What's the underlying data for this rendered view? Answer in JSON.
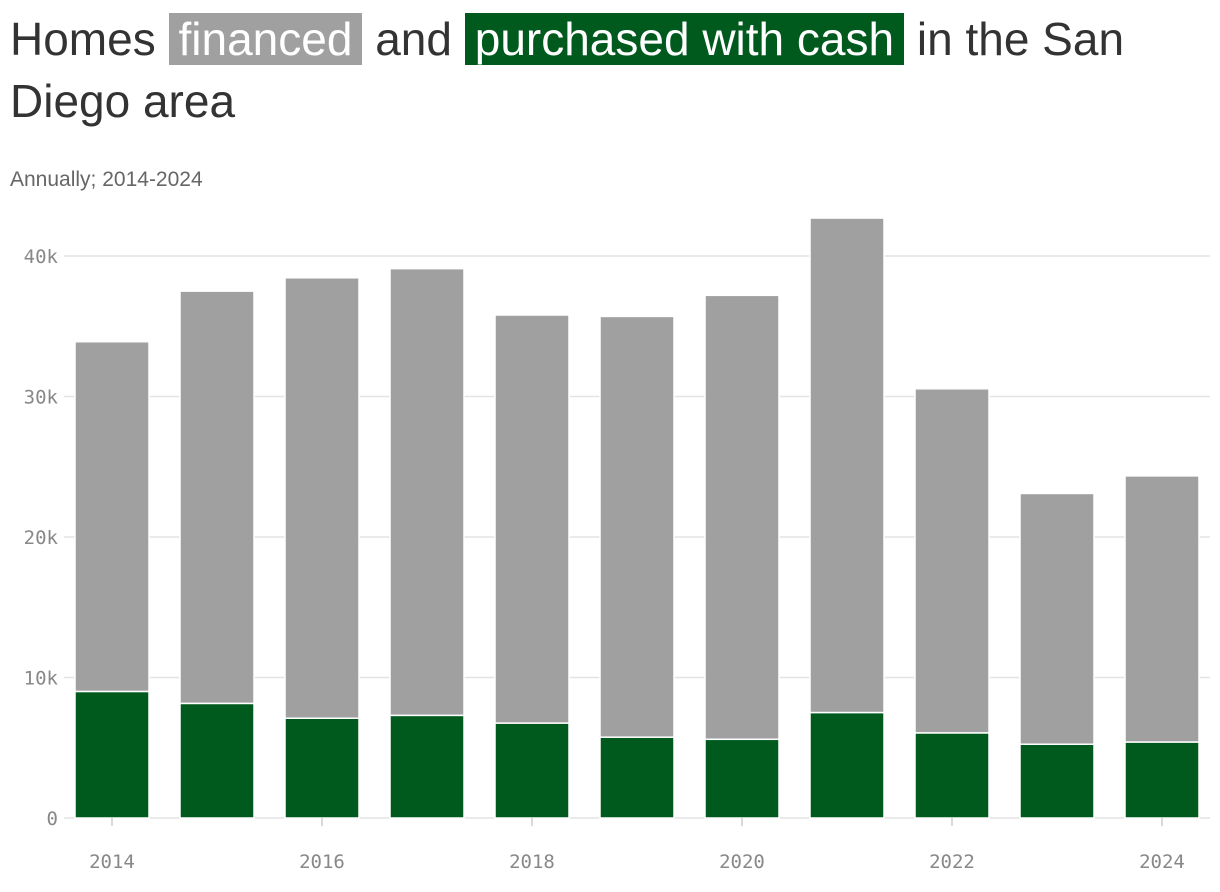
{
  "title": {
    "prefix": "Homes",
    "financed_label": "financed",
    "middle": "and",
    "cash_label": "purchased with cash",
    "suffix": "in the San Diego area"
  },
  "subtitle": "Annually; 2014-2024",
  "colors": {
    "financed": "#a0a0a0",
    "cash": "#005a1e",
    "grid": "#e3e3e3",
    "axis_text": "#888888"
  },
  "chart_data": {
    "type": "bar",
    "stacked": true,
    "categories": [
      "2014",
      "2015",
      "2016",
      "2017",
      "2018",
      "2019",
      "2020",
      "2021",
      "2022",
      "2023",
      "2024"
    ],
    "series": [
      {
        "name": "purchased with cash",
        "values": [
          9000,
          8150,
          7100,
          7300,
          6750,
          5750,
          5600,
          7500,
          6050,
          5250,
          5400
        ]
      },
      {
        "name": "financed",
        "values": [
          24900,
          29350,
          31350,
          31800,
          29050,
          29950,
          31600,
          35200,
          24500,
          17850,
          18950
        ]
      }
    ],
    "ylim": [
      0,
      40000
    ],
    "y_ticks": [
      0,
      10000,
      20000,
      30000,
      40000
    ],
    "y_tick_labels": [
      "0",
      "10k",
      "20k",
      "30k",
      "40k"
    ],
    "x_tick_labels": [
      "2014",
      "2016",
      "2018",
      "2020",
      "2022",
      "2024"
    ],
    "xlabel": "",
    "ylabel": "",
    "grid": true
  }
}
